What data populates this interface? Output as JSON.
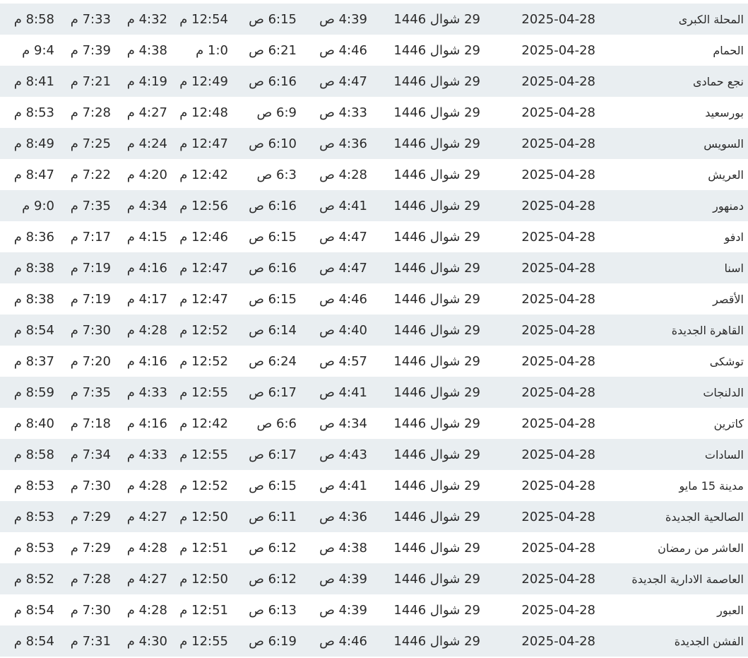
{
  "table": {
    "rows": [
      [
        "المحلة الكبرى",
        "2025-04-28",
        "29 شوال 1446",
        "4:39 ص",
        "6:15 ص",
        "12:54 م",
        "4:32 م",
        "7:33 م",
        "8:58 م"
      ],
      [
        "الحمام",
        "2025-04-28",
        "29 شوال 1446",
        "4:46 ص",
        "6:21 ص",
        "1:0 م",
        "4:38 م",
        "7:39 م",
        "9:4 م"
      ],
      [
        "نجع حمادى",
        "2025-04-28",
        "29 شوال 1446",
        "4:47 ص",
        "6:16 ص",
        "12:49 م",
        "4:19 م",
        "7:21 م",
        "8:41 م"
      ],
      [
        "بورسعيد",
        "2025-04-28",
        "29 شوال 1446",
        "4:33 ص",
        "6:9 ص",
        "12:48 م",
        "4:27 م",
        "7:28 م",
        "8:53 م"
      ],
      [
        "السويس",
        "2025-04-28",
        "29 شوال 1446",
        "4:36 ص",
        "6:10 ص",
        "12:47 م",
        "4:24 م",
        "7:25 م",
        "8:49 م"
      ],
      [
        "العريش",
        "2025-04-28",
        "29 شوال 1446",
        "4:28 ص",
        "6:3 ص",
        "12:42 م",
        "4:20 م",
        "7:22 م",
        "8:47 م"
      ],
      [
        "دمنهور",
        "2025-04-28",
        "29 شوال 1446",
        "4:41 ص",
        "6:16 ص",
        "12:56 م",
        "4:34 م",
        "7:35 م",
        "9:0 م"
      ],
      [
        "ادفو",
        "2025-04-28",
        "29 شوال 1446",
        "4:47 ص",
        "6:15 ص",
        "12:46 م",
        "4:15 م",
        "7:17 م",
        "8:36 م"
      ],
      [
        "اسنا",
        "2025-04-28",
        "29 شوال 1446",
        "4:47 ص",
        "6:16 ص",
        "12:47 م",
        "4:16 م",
        "7:19 م",
        "8:38 م"
      ],
      [
        "الأقصر",
        "2025-04-28",
        "29 شوال 1446",
        "4:46 ص",
        "6:15 ص",
        "12:47 م",
        "4:17 م",
        "7:19 م",
        "8:38 م"
      ],
      [
        "القاهرة الجديدة",
        "2025-04-28",
        "29 شوال 1446",
        "4:40 ص",
        "6:14 ص",
        "12:52 م",
        "4:28 م",
        "7:30 م",
        "8:54 م"
      ],
      [
        "توشكى",
        "2025-04-28",
        "29 شوال 1446",
        "4:57 ص",
        "6:24 ص",
        "12:52 م",
        "4:16 م",
        "7:20 م",
        "8:37 م"
      ],
      [
        "الدلنجات",
        "2025-04-28",
        "29 شوال 1446",
        "4:41 ص",
        "6:17 ص",
        "12:55 م",
        "4:33 م",
        "7:35 م",
        "8:59 م"
      ],
      [
        "كاترين",
        "2025-04-28",
        "29 شوال 1446",
        "4:34 ص",
        "6:6 ص",
        "12:42 م",
        "4:16 م",
        "7:18 م",
        "8:40 م"
      ],
      [
        "السادات",
        "2025-04-28",
        "29 شوال 1446",
        "4:43 ص",
        "6:17 ص",
        "12:55 م",
        "4:33 م",
        "7:34 م",
        "8:58 م"
      ],
      [
        "مدينة 15 مايو",
        "2025-04-28",
        "29 شوال 1446",
        "4:41 ص",
        "6:15 ص",
        "12:52 م",
        "4:28 م",
        "7:30 م",
        "8:53 م"
      ],
      [
        "الصالحية الجديدة",
        "2025-04-28",
        "29 شوال 1446",
        "4:36 ص",
        "6:11 ص",
        "12:50 م",
        "4:27 م",
        "7:29 م",
        "8:53 م"
      ],
      [
        "العاشر من رمضان",
        "2025-04-28",
        "29 شوال 1446",
        "4:38 ص",
        "6:12 ص",
        "12:51 م",
        "4:28 م",
        "7:29 م",
        "8:53 م"
      ],
      [
        "العاصمة الادارية الجديدة",
        "2025-04-28",
        "29 شوال 1446",
        "4:39 ص",
        "6:12 ص",
        "12:50 م",
        "4:27 م",
        "7:28 م",
        "8:52 م"
      ],
      [
        "العبور",
        "2025-04-28",
        "29 شوال 1446",
        "4:39 ص",
        "6:13 ص",
        "12:51 م",
        "4:28 م",
        "7:30 م",
        "8:54 م"
      ],
      [
        "الفشن الجديدة",
        "2025-04-28",
        "29 شوال 1446",
        "4:46 ص",
        "6:19 ص",
        "12:55 م",
        "4:30 م",
        "7:31 م",
        "8:54 م"
      ]
    ]
  }
}
